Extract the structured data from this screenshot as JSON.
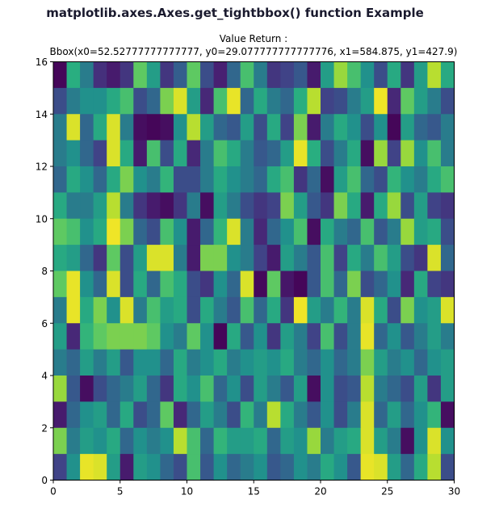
{
  "figure_title": "matplotlib.axes.Axes.get_tightbbox() function Example",
  "axes_title_line1": "Value Return :",
  "axes_title_line2": "Bbox(x0=52.52777777777777, y0=29.077777777777776, x1=584.875, y1=427.9)",
  "chart_data": {
    "type": "heatmap",
    "title": "Value Return :\nBbox(x0=52.52777777777777, y0=29.077777777777776, x1=584.875, y1=427.9)",
    "xlabel": "",
    "ylabel": "",
    "xlim": [
      0,
      30
    ],
    "ylim": [
      0,
      16
    ],
    "xticks": [
      0,
      5,
      10,
      15,
      20,
      25,
      30
    ],
    "yticks": [
      0,
      2,
      4,
      6,
      8,
      10,
      12,
      14,
      16
    ],
    "grid": false,
    "colormap": "viridis",
    "value_range": [
      0,
      1
    ],
    "shape": [
      16,
      30
    ],
    "rows_from_top": [
      [
        0.02,
        0.62,
        0.45,
        0.18,
        0.1,
        0.2,
        0.75,
        0.55,
        0.2,
        0.38,
        0.75,
        0.3,
        0.12,
        0.4,
        0.7,
        0.45,
        0.2,
        0.25,
        0.35,
        0.1,
        0.55,
        0.85,
        0.7,
        0.5,
        0.3,
        0.6,
        0.2,
        0.55,
        0.9,
        0.6
      ],
      [
        0.3,
        0.45,
        0.5,
        0.5,
        0.6,
        0.7,
        0.3,
        0.4,
        0.8,
        0.95,
        0.55,
        0.15,
        0.7,
        0.97,
        0.4,
        0.6,
        0.45,
        0.4,
        0.62,
        0.9,
        0.25,
        0.3,
        0.45,
        0.55,
        0.98,
        0.15,
        0.75,
        0.55,
        0.45,
        0.3
      ],
      [
        0.45,
        0.95,
        0.4,
        0.6,
        0.95,
        0.45,
        0.05,
        0.02,
        0.05,
        0.5,
        0.9,
        0.55,
        0.4,
        0.35,
        0.55,
        0.3,
        0.6,
        0.25,
        0.8,
        0.1,
        0.45,
        0.6,
        0.5,
        0.3,
        0.5,
        0.02,
        0.55,
        0.4,
        0.35,
        0.45
      ],
      [
        0.45,
        0.5,
        0.4,
        0.25,
        0.95,
        0.6,
        0.1,
        0.7,
        0.3,
        0.6,
        0.15,
        0.45,
        0.7,
        0.6,
        0.45,
        0.35,
        0.4,
        0.55,
        0.97,
        0.62,
        0.3,
        0.45,
        0.6,
        0.05,
        0.85,
        0.25,
        0.85,
        0.5,
        0.7,
        0.45
      ],
      [
        0.4,
        0.6,
        0.5,
        0.4,
        0.6,
        0.8,
        0.5,
        0.45,
        0.65,
        0.3,
        0.3,
        0.45,
        0.6,
        0.5,
        0.45,
        0.4,
        0.6,
        0.7,
        0.2,
        0.4,
        0.05,
        0.55,
        0.7,
        0.4,
        0.3,
        0.65,
        0.5,
        0.45,
        0.6,
        0.7
      ],
      [
        0.6,
        0.45,
        0.45,
        0.55,
        0.9,
        0.45,
        0.2,
        0.1,
        0.05,
        0.2,
        0.45,
        0.05,
        0.55,
        0.45,
        0.3,
        0.2,
        0.25,
        0.8,
        0.55,
        0.35,
        0.2,
        0.8,
        0.6,
        0.1,
        0.6,
        0.85,
        0.3,
        0.55,
        0.25,
        0.2
      ],
      [
        0.75,
        0.7,
        0.5,
        0.6,
        0.98,
        0.8,
        0.4,
        0.3,
        0.7,
        0.5,
        0.1,
        0.4,
        0.65,
        0.95,
        0.45,
        0.15,
        0.4,
        0.5,
        0.7,
        0.05,
        0.6,
        0.45,
        0.4,
        0.7,
        0.35,
        0.45,
        0.85,
        0.55,
        0.6,
        0.3
      ],
      [
        0.6,
        0.55,
        0.4,
        0.2,
        0.75,
        0.3,
        0.55,
        0.95,
        0.95,
        0.45,
        0.1,
        0.8,
        0.8,
        0.5,
        0.45,
        0.25,
        0.1,
        0.55,
        0.45,
        0.35,
        0.7,
        0.25,
        0.6,
        0.45,
        0.7,
        0.55,
        0.3,
        0.2,
        0.95,
        0.4
      ],
      [
        0.75,
        0.97,
        0.5,
        0.4,
        0.95,
        0.3,
        0.6,
        0.4,
        0.7,
        0.6,
        0.3,
        0.2,
        0.5,
        0.4,
        0.95,
        0.03,
        0.75,
        0.08,
        0.02,
        0.35,
        0.7,
        0.4,
        0.8,
        0.3,
        0.4,
        0.5,
        0.15,
        0.6,
        0.25,
        0.2
      ],
      [
        0.45,
        0.97,
        0.6,
        0.8,
        0.5,
        0.95,
        0.45,
        0.7,
        0.55,
        0.6,
        0.3,
        0.6,
        0.45,
        0.35,
        0.7,
        0.4,
        0.6,
        0.2,
        0.98,
        0.55,
        0.45,
        0.65,
        0.45,
        0.95,
        0.6,
        0.3,
        0.8,
        0.5,
        0.55,
        0.95
      ],
      [
        0.55,
        0.15,
        0.65,
        0.75,
        0.8,
        0.8,
        0.8,
        0.75,
        0.5,
        0.45,
        0.75,
        0.5,
        0.02,
        0.6,
        0.35,
        0.5,
        0.2,
        0.55,
        0.45,
        0.25,
        0.7,
        0.3,
        0.45,
        0.97,
        0.4,
        0.5,
        0.35,
        0.45,
        0.55,
        0.45
      ],
      [
        0.45,
        0.4,
        0.55,
        0.45,
        0.55,
        0.35,
        0.5,
        0.5,
        0.4,
        0.6,
        0.45,
        0.5,
        0.6,
        0.45,
        0.5,
        0.55,
        0.5,
        0.6,
        0.45,
        0.4,
        0.5,
        0.4,
        0.45,
        0.8,
        0.55,
        0.45,
        0.5,
        0.4,
        0.5,
        0.55
      ],
      [
        0.85,
        0.35,
        0.05,
        0.3,
        0.4,
        0.45,
        0.55,
        0.4,
        0.2,
        0.6,
        0.5,
        0.7,
        0.4,
        0.5,
        0.3,
        0.55,
        0.45,
        0.35,
        0.55,
        0.05,
        0.5,
        0.3,
        0.35,
        0.9,
        0.45,
        0.4,
        0.3,
        0.55,
        0.2,
        0.55
      ],
      [
        0.1,
        0.4,
        0.5,
        0.55,
        0.4,
        0.6,
        0.3,
        0.4,
        0.75,
        0.15,
        0.4,
        0.55,
        0.45,
        0.3,
        0.65,
        0.45,
        0.9,
        0.6,
        0.45,
        0.35,
        0.5,
        0.3,
        0.45,
        0.95,
        0.4,
        0.55,
        0.4,
        0.5,
        0.65,
        0.05
      ],
      [
        0.8,
        0.45,
        0.55,
        0.5,
        0.6,
        0.4,
        0.5,
        0.45,
        0.5,
        0.9,
        0.7,
        0.4,
        0.65,
        0.55,
        0.55,
        0.6,
        0.4,
        0.55,
        0.5,
        0.85,
        0.45,
        0.55,
        0.6,
        0.95,
        0.55,
        0.45,
        0.05,
        0.5,
        0.95,
        0.5
      ],
      [
        0.25,
        0.5,
        0.97,
        0.95,
        0.55,
        0.1,
        0.55,
        0.5,
        0.4,
        0.3,
        0.7,
        0.35,
        0.5,
        0.4,
        0.45,
        0.5,
        0.35,
        0.4,
        0.5,
        0.45,
        0.6,
        0.5,
        0.35,
        0.97,
        0.95,
        0.55,
        0.4,
        0.6,
        0.9,
        0.3
      ]
    ]
  }
}
